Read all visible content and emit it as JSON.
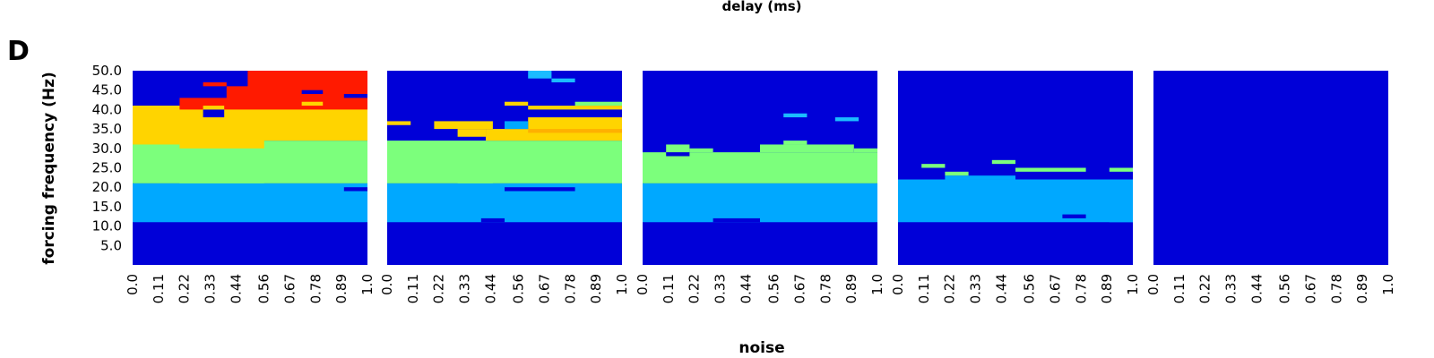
{
  "header_label": "delay (ms)",
  "panel_letter": "D",
  "chart_data": {
    "type": "heatmap",
    "ylabel": "forcing frequency (Hz)",
    "xlabel": "noise",
    "y_ticks": [
      "50.0",
      "45.0",
      "40.0",
      "35.0",
      "30.0",
      "25.0",
      "20.0",
      "15.0",
      "10.0",
      "5.0"
    ],
    "x_ticks": [
      "0.0",
      "0.11",
      "0.22",
      "0.33",
      "0.44",
      "0.56",
      "0.67",
      "0.78",
      "0.89",
      "1.0"
    ],
    "x_range": [
      0.0,
      1.0
    ],
    "y_range": [
      0.0,
      50.0
    ],
    "colors": {
      "background": "#0000d8",
      "cyan": "#00a8ff",
      "light_cyan": "#1bbcff",
      "green": "#7cff7c",
      "yellow": "#ffd400",
      "orange": "#ffb000",
      "red": "#ff1a00"
    },
    "panels": [
      {
        "name": "panel-1",
        "rects": [
          {
            "x0": 0.0,
            "x1": 1.0,
            "y0": 21,
            "y1": 11,
            "c": "cyan"
          },
          {
            "x0": 0.0,
            "x1": 1.0,
            "y0": 32,
            "y1": 21,
            "c": "green"
          },
          {
            "x0": 0.0,
            "x1": 0.2,
            "y0": 31,
            "y1": 22,
            "c": "green"
          },
          {
            "x0": 0.2,
            "x1": 0.56,
            "y0": 30,
            "y1": 21,
            "c": "green"
          },
          {
            "x0": 0.0,
            "x1": 1.0,
            "y0": 41,
            "y1": 32,
            "c": "yellow"
          },
          {
            "x0": 0.0,
            "x1": 0.2,
            "y0": 41,
            "y1": 31,
            "c": "yellow"
          },
          {
            "x0": 0.2,
            "x1": 0.56,
            "y0": 40,
            "y1": 30,
            "c": "yellow"
          },
          {
            "x0": 0.2,
            "x1": 1.0,
            "y0": 43,
            "y1": 40,
            "c": "red"
          },
          {
            "x0": 0.4,
            "x1": 1.0,
            "y0": 46,
            "y1": 42,
            "c": "red"
          },
          {
            "x0": 0.49,
            "x1": 1.0,
            "y0": 50,
            "y1": 45,
            "c": "red"
          },
          {
            "x0": 0.6,
            "x1": 0.8,
            "y0": 50,
            "y1": 44,
            "c": "red"
          },
          {
            "x0": 0.3,
            "x1": 0.4,
            "y0": 47,
            "y1": 46,
            "c": "red"
          },
          {
            "x0": 0.3,
            "x1": 0.39,
            "y0": 40,
            "y1": 38,
            "c": "background"
          },
          {
            "x0": 0.3,
            "x1": 0.39,
            "y0": 41,
            "y1": 40,
            "c": "yellow"
          },
          {
            "x0": 0.72,
            "x1": 0.81,
            "y0": 42,
            "y1": 41,
            "c": "yellow"
          },
          {
            "x0": 0.72,
            "x1": 0.81,
            "y0": 45,
            "y1": 44,
            "c": "background"
          },
          {
            "x0": 0.9,
            "x1": 1.0,
            "y0": 44,
            "y1": 43,
            "c": "background"
          },
          {
            "x0": 0.9,
            "x1": 1.0,
            "y0": 20,
            "y1": 19,
            "c": "background"
          }
        ]
      },
      {
        "name": "panel-2",
        "rects": [
          {
            "x0": 0.0,
            "x1": 1.0,
            "y0": 21,
            "y1": 11,
            "c": "cyan"
          },
          {
            "x0": 0.0,
            "x1": 1.0,
            "y0": 32,
            "y1": 21,
            "c": "green"
          },
          {
            "x0": 0.0,
            "x1": 0.3,
            "y0": 31,
            "y1": 22,
            "c": "green"
          },
          {
            "x0": 0.3,
            "x1": 0.45,
            "y0": 30,
            "y1": 21,
            "c": "green"
          },
          {
            "x0": 0.0,
            "x1": 0.1,
            "y0": 37,
            "y1": 36,
            "c": "yellow"
          },
          {
            "x0": 0.2,
            "x1": 0.45,
            "y0": 37,
            "y1": 35,
            "c": "yellow"
          },
          {
            "x0": 0.3,
            "x1": 0.42,
            "y0": 35,
            "y1": 33,
            "c": "yellow"
          },
          {
            "x0": 0.42,
            "x1": 1.0,
            "y0": 35,
            "y1": 32,
            "c": "yellow"
          },
          {
            "x0": 0.6,
            "x1": 1.0,
            "y0": 38,
            "y1": 34,
            "c": "yellow"
          },
          {
            "x0": 0.6,
            "x1": 1.0,
            "y0": 41,
            "y1": 40,
            "c": "yellow"
          },
          {
            "x0": 0.5,
            "x1": 0.6,
            "y0": 42,
            "y1": 41,
            "c": "yellow"
          },
          {
            "x0": 0.8,
            "x1": 1.0,
            "y0": 42,
            "y1": 41,
            "c": "green"
          },
          {
            "x0": 0.6,
            "x1": 1.0,
            "y0": 35,
            "y1": 34,
            "c": "orange"
          },
          {
            "x0": 0.5,
            "x1": 0.6,
            "y0": 37,
            "y1": 35,
            "c": "cyan"
          },
          {
            "x0": 0.6,
            "x1": 0.7,
            "y0": 50,
            "y1": 48,
            "c": "light_cyan"
          },
          {
            "x0": 0.7,
            "x1": 0.8,
            "y0": 48,
            "y1": 47,
            "c": "light_cyan"
          },
          {
            "x0": 0.5,
            "x1": 0.8,
            "y0": 20,
            "y1": 19,
            "c": "background"
          },
          {
            "x0": 0.4,
            "x1": 0.5,
            "y0": 12,
            "y1": 11,
            "c": "background"
          }
        ]
      },
      {
        "name": "panel-3",
        "rects": [
          {
            "x0": 0.0,
            "x1": 1.0,
            "y0": 21,
            "y1": 11,
            "c": "cyan"
          },
          {
            "x0": 0.0,
            "x1": 1.0,
            "y0": 29,
            "y1": 21,
            "c": "green"
          },
          {
            "x0": 0.1,
            "x1": 0.2,
            "y0": 31,
            "y1": 29,
            "c": "green"
          },
          {
            "x0": 0.2,
            "x1": 0.3,
            "y0": 30,
            "y1": 29,
            "c": "green"
          },
          {
            "x0": 0.5,
            "x1": 0.9,
            "y0": 31,
            "y1": 29,
            "c": "green"
          },
          {
            "x0": 0.9,
            "x1": 1.0,
            "y0": 30,
            "y1": 29,
            "c": "green"
          },
          {
            "x0": 0.1,
            "x1": 0.2,
            "y0": 29,
            "y1": 28,
            "c": "background"
          },
          {
            "x0": 0.6,
            "x1": 0.7,
            "y0": 39,
            "y1": 38,
            "c": "light_cyan"
          },
          {
            "x0": 0.82,
            "x1": 0.92,
            "y0": 38,
            "y1": 37,
            "c": "light_cyan"
          },
          {
            "x0": 0.6,
            "x1": 0.7,
            "y0": 32,
            "y1": 31,
            "c": "green"
          },
          {
            "x0": 0.3,
            "x1": 0.5,
            "y0": 12,
            "y1": 11,
            "c": "background"
          }
        ]
      },
      {
        "name": "panel-4",
        "rects": [
          {
            "x0": 0.0,
            "x1": 1.0,
            "y0": 22,
            "y1": 11,
            "c": "cyan"
          },
          {
            "x0": 0.2,
            "x1": 0.5,
            "y0": 23,
            "y1": 22,
            "c": "cyan"
          },
          {
            "x0": 0.9,
            "x1": 1.0,
            "y0": 20,
            "y1": 11,
            "c": "cyan"
          },
          {
            "x0": 0.1,
            "x1": 0.2,
            "y0": 26,
            "y1": 25,
            "c": "green"
          },
          {
            "x0": 0.2,
            "x1": 0.3,
            "y0": 24,
            "y1": 23,
            "c": "green"
          },
          {
            "x0": 0.4,
            "x1": 0.5,
            "y0": 27,
            "y1": 26,
            "c": "green"
          },
          {
            "x0": 0.5,
            "x1": 0.8,
            "y0": 25,
            "y1": 24,
            "c": "green"
          },
          {
            "x0": 0.9,
            "x1": 1.0,
            "y0": 25,
            "y1": 24,
            "c": "green"
          },
          {
            "x0": 0.7,
            "x1": 0.8,
            "y0": 13,
            "y1": 12,
            "c": "background"
          }
        ]
      },
      {
        "name": "panel-5",
        "rects": []
      }
    ]
  }
}
